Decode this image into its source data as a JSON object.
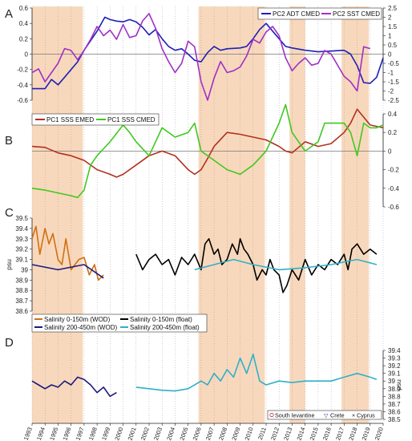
{
  "chart_data": [
    {
      "panel": "A",
      "type": "line",
      "x_range": [
        1993,
        2020
      ],
      "ylim_left": [
        -0.6,
        0.6
      ],
      "yticks_left": [
        "0.6",
        "0.4",
        "0.2",
        "0",
        "-0.2",
        "-0.4",
        "-0.6"
      ],
      "ylim_right": [
        -2.5,
        2.5
      ],
      "yticks_right": [
        "2.5",
        "2",
        "1.5",
        "1",
        "0.5",
        "0",
        "-0.5",
        "-1",
        "-1.5",
        "-2",
        "-2.5"
      ],
      "legend_position": "top-right",
      "series": [
        {
          "name": "PC2 ADT CMED",
          "color": "#1f1fb4",
          "axis": "left",
          "x": [
            1993,
            1994,
            1994.5,
            1995,
            1995.5,
            1996,
            1996.5,
            1997,
            1998,
            1998.6,
            1999,
            1999.5,
            2000,
            2000.5,
            2001,
            2001.5,
            2002,
            2002.5,
            2003,
            2003.5,
            2004,
            2004.5,
            2005,
            2005.5,
            2006,
            2006.5,
            2007,
            2007.5,
            2008,
            2009,
            2009.5,
            2010,
            2010.5,
            2011,
            2011.5,
            2012,
            2012.5,
            2013,
            2014,
            2015,
            2016,
            2017,
            2017.5,
            2018,
            2018.5,
            2019,
            2019.5,
            2020
          ],
          "y": [
            -0.45,
            -0.45,
            -0.33,
            -0.4,
            -0.3,
            -0.2,
            -0.1,
            0.05,
            0.3,
            0.48,
            0.45,
            0.43,
            0.42,
            0.45,
            0.42,
            0.35,
            0.25,
            0.32,
            0.2,
            0.1,
            0.05,
            0.07,
            0.0,
            -0.08,
            -0.1,
            0.02,
            0.1,
            0.05,
            0.07,
            0.08,
            0.1,
            0.2,
            0.32,
            0.4,
            0.3,
            0.2,
            0.1,
            0.08,
            0.05,
            0.03,
            0.04,
            0.05,
            0.0,
            -0.15,
            -0.37,
            -0.38,
            -0.3,
            -0.05
          ]
        },
        {
          "name": "PC2 SST CMED",
          "color": "#a030c8",
          "axis": "right",
          "x": [
            1993,
            1993.5,
            1994,
            1994.5,
            1995,
            1995.5,
            1996,
            1996.5,
            1997,
            1997.5,
            1998,
            1998.5,
            1999,
            1999.5,
            2000,
            2000.5,
            2001,
            2001.5,
            2002,
            2002.5,
            2003,
            2003.5,
            2004,
            2004.5,
            2005,
            2005.5,
            2006,
            2006.5,
            2007,
            2007.5,
            2008,
            2008.5,
            2009,
            2009.5,
            2010,
            2010.5,
            2011,
            2011.5,
            2012,
            2012.5,
            2013,
            2013.5,
            2014,
            2014.5,
            2015,
            2015.5,
            2016,
            2016.5,
            2017,
            2017.5,
            2018,
            2018.5,
            2019
          ],
          "y": [
            -1.0,
            -0.8,
            -1.5,
            -1.0,
            -0.5,
            0.3,
            0.2,
            -0.3,
            0.2,
            0.8,
            1.5,
            1.0,
            1.3,
            0.8,
            1.6,
            0.9,
            1.0,
            1.8,
            2.2,
            1.4,
            0.3,
            -0.4,
            -1.0,
            -0.5,
            0.7,
            0.4,
            -1.5,
            -2.5,
            -1.3,
            -0.4,
            -1.0,
            -0.9,
            -0.7,
            -0.1,
            0.8,
            0.6,
            1.2,
            1.5,
            1.0,
            -0.2,
            -0.9,
            -0.5,
            -0.2,
            -0.6,
            -0.5,
            0.2,
            0.0,
            -0.6,
            -1.2,
            -1.5,
            -2.0,
            0.4,
            0.3
          ]
        }
      ]
    },
    {
      "panel": "B",
      "type": "line",
      "x_range": [
        1993,
        2020
      ],
      "ylim_right": [
        -0.6,
        0.4
      ],
      "yticks_right": [
        "0.4",
        "0.2",
        "0",
        "-0.2",
        "-0.4",
        "-0.6"
      ],
      "legend_position": "top-left",
      "series": [
        {
          "name": "PC1 SSS EMED",
          "color": "#b03020",
          "x": [
            1993,
            1994,
            1995,
            1996,
            1997,
            1998,
            1999,
            1999.5,
            2000,
            2001,
            2002,
            2003,
            2004,
            2005,
            2005.5,
            2006,
            2006.5,
            2007,
            2008,
            2009,
            2010,
            2011,
            2012,
            2012.5,
            2013,
            2014,
            2015,
            2016,
            2017,
            2017.5,
            2018,
            2019,
            2020
          ],
          "y": [
            0.05,
            0.04,
            -0.02,
            -0.05,
            -0.1,
            -0.2,
            -0.25,
            -0.28,
            -0.25,
            -0.15,
            -0.05,
            0.0,
            -0.05,
            -0.2,
            -0.25,
            -0.2,
            -0.08,
            0.05,
            0.2,
            0.18,
            0.15,
            0.12,
            0.05,
            0.0,
            -0.02,
            0.1,
            0.05,
            0.08,
            0.2,
            0.3,
            0.45,
            0.28,
            0.25
          ]
        },
        {
          "name": "PC1 SSS CMED",
          "color": "#40c820",
          "x": [
            1993,
            1994,
            1995,
            1996,
            1996.5,
            1997,
            1997.5,
            1998,
            1999,
            2000,
            2000.5,
            2001,
            2002,
            2002.5,
            2003,
            2004,
            2005,
            2005.5,
            2006,
            2007,
            2008,
            2009,
            2010,
            2011,
            2011.5,
            2012,
            2012.5,
            2013,
            2014,
            2015,
            2015.5,
            2016,
            2017,
            2017.5,
            2018,
            2018.5,
            2019,
            2019.5,
            2020
          ],
          "y": [
            -0.4,
            -0.42,
            -0.45,
            -0.48,
            -0.5,
            -0.42,
            -0.15,
            -0.05,
            0.1,
            0.28,
            0.2,
            0.1,
            -0.05,
            0.1,
            0.25,
            0.15,
            0.2,
            0.3,
            0.0,
            -0.1,
            -0.2,
            -0.25,
            -0.15,
            0.0,
            0.15,
            0.3,
            0.5,
            0.2,
            0.0,
            0.1,
            0.3,
            0.3,
            0.3,
            0.2,
            -0.05,
            0.3,
            0.25,
            0.25,
            0.28
          ]
        }
      ]
    },
    {
      "panel": "C",
      "type": "line",
      "x_range": [
        1993,
        2020
      ],
      "ylabel": "psu",
      "ylim_left": [
        38.6,
        39.5
      ],
      "yticks_left": [
        "39.5",
        "39.4",
        "39.3",
        "39.2",
        "39.1",
        "39",
        "38.9",
        "38.8",
        "38.7",
        "38.6"
      ],
      "legend_position": "bottom-left",
      "series": [
        {
          "name": "Salinity 0-150m (WOD)",
          "color": "#d07010",
          "x": [
            1993,
            1993.3,
            1993.6,
            1994,
            1994.3,
            1994.6,
            1995,
            1995.3,
            1995.6,
            1996,
            1996.3,
            1996.6,
            1997,
            1997.4,
            1997.8,
            1998.1,
            1998.5
          ],
          "y": [
            39.3,
            39.42,
            39.15,
            39.4,
            39.25,
            39.35,
            39.1,
            39.05,
            39.3,
            39.0,
            39.05,
            39.1,
            39.12,
            38.95,
            39.05,
            38.9,
            38.95
          ]
        },
        {
          "name": "Salinity 200-450m (WOD)",
          "color": "#1a1a80",
          "x": [
            1993,
            1995,
            1997,
            1998.5
          ],
          "y": [
            39.05,
            39.0,
            39.05,
            38.92
          ]
        },
        {
          "name": "Salinity 0-150m (float)",
          "color": "#000000",
          "x": [
            2001,
            2001.5,
            2002,
            2002.5,
            2003,
            2003.5,
            2004,
            2004.5,
            2005,
            2005.5,
            2006,
            2006.3,
            2006.6,
            2007,
            2007.3,
            2007.6,
            2008,
            2008.4,
            2008.8,
            2009,
            2009.3,
            2009.6,
            2010,
            2010.3,
            2010.7,
            2011,
            2011.3,
            2011.6,
            2012,
            2012.3,
            2012.6,
            2013,
            2013.5,
            2014,
            2014.5,
            2015,
            2015.5,
            2016,
            2016.5,
            2017,
            2017.3,
            2017.6,
            2018,
            2018.5,
            2019,
            2019.5
          ],
          "y": [
            39.15,
            39.0,
            39.1,
            39.15,
            39.05,
            39.1,
            38.95,
            39.12,
            39.05,
            39.15,
            39.0,
            39.25,
            39.3,
            39.15,
            39.2,
            39.05,
            39.1,
            39.25,
            39.15,
            39.3,
            39.2,
            39.15,
            39.05,
            38.9,
            39.0,
            38.95,
            39.1,
            39.0,
            38.95,
            38.78,
            38.85,
            39.0,
            38.9,
            39.1,
            38.95,
            39.05,
            39.0,
            39.1,
            39.05,
            39.15,
            39.0,
            39.2,
            39.25,
            39.15,
            39.2,
            39.15
          ]
        },
        {
          "name": "Salinity 200-450m (float)",
          "color": "#30b0c8",
          "x": [
            2005.5,
            2007,
            2008.5,
            2010,
            2012,
            2014,
            2016,
            2018,
            2019.5
          ],
          "y": [
            39.0,
            39.05,
            39.1,
            39.05,
            39.0,
            39.02,
            39.05,
            39.1,
            39.05
          ]
        }
      ]
    },
    {
      "panel": "D",
      "type": "line",
      "x_range": [
        1993,
        2020
      ],
      "ylabel": "psu",
      "ylim_right": [
        38.5,
        39.4
      ],
      "yticks_right": [
        "39.4",
        "39.3",
        "39.2",
        "39.1",
        "39",
        "38.9",
        "38.8",
        "38.7",
        "38.6",
        "38.5"
      ],
      "legend_position": "bottom-right",
      "legend": [
        "South levantine",
        "Crete",
        "Cyprus"
      ],
      "series": [
        {
          "name": "Salinity 200-450m (WOD)",
          "color": "#1a1a80",
          "x": [
            1993,
            1993.5,
            1994,
            1994.5,
            1995,
            1995.5,
            1996,
            1996.5,
            1997,
            1997.5,
            1998,
            1998.5,
            1999,
            1999.5
          ],
          "y": [
            39.0,
            38.95,
            38.9,
            38.95,
            38.92,
            39.0,
            38.95,
            39.05,
            39.02,
            38.95,
            38.85,
            38.92,
            38.8,
            38.85
          ]
        },
        {
          "name": "Salinity 200-450m (float)",
          "color": "#30b0c8",
          "x": [
            2001,
            2002,
            2003,
            2004,
            2005,
            2006,
            2006.5,
            2007,
            2007.5,
            2008,
            2008.5,
            2009,
            2009.5,
            2010,
            2010.5,
            2011,
            2012,
            2013,
            2014,
            2015,
            2016,
            2017,
            2018,
            2019,
            2019.5
          ],
          "y": [
            38.92,
            38.9,
            38.88,
            38.87,
            38.9,
            39.0,
            38.95,
            39.1,
            39.0,
            39.15,
            39.05,
            39.3,
            39.1,
            39.35,
            39.0,
            38.95,
            39.0,
            38.98,
            39.0,
            39.0,
            39.0,
            39.05,
            39.1,
            39.05,
            39.02
          ]
        }
      ]
    }
  ],
  "panels": {
    "A": {
      "letter": "A"
    },
    "B": {
      "letter": "B"
    },
    "C": {
      "letter": "C"
    },
    "D": {
      "letter": "D"
    }
  },
  "x_axis_labels": [
    "1993",
    "1994",
    "1995",
    "1996",
    "1997",
    "1998",
    "1999",
    "2000",
    "2001",
    "2002",
    "2003",
    "2004",
    "2005",
    "2006",
    "2007",
    "2008",
    "2009",
    "2010",
    "2011",
    "2012",
    "2013",
    "2014",
    "2015",
    "2016",
    "2017",
    "2018",
    "2019",
    "2020"
  ],
  "shaded_periods": [
    [
      1993,
      1996.9
    ],
    [
      2005.8,
      2010.9
    ],
    [
      2012.8,
      2014
    ],
    [
      2016.8,
      2018.9
    ]
  ],
  "colors": {
    "shade": "#f8d8bc",
    "zero_line": "#777777",
    "grid": "#888888"
  }
}
